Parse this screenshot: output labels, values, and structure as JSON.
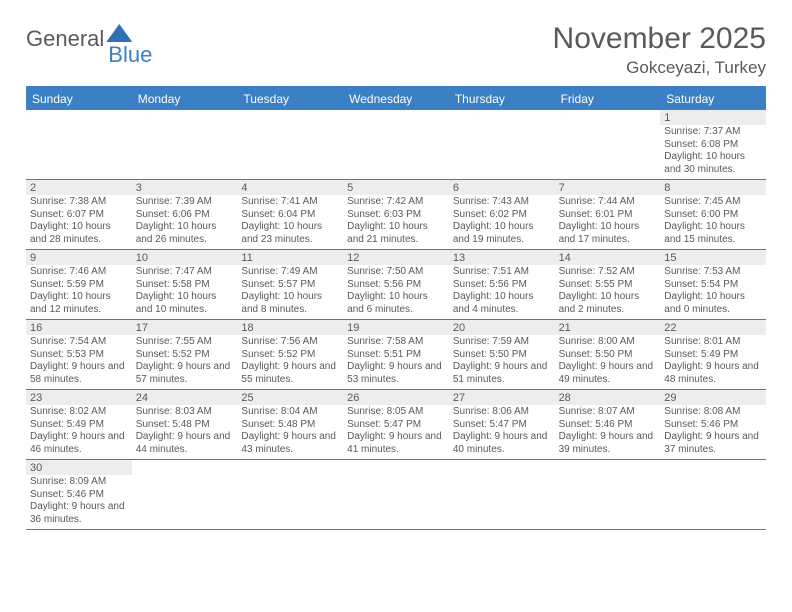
{
  "logo": {
    "part1": "General",
    "part2": "Blue"
  },
  "title": "November 2025",
  "location": "Gokceyazi, Turkey",
  "colors": {
    "header_bg": "#3b7fc4",
    "header_text": "#ffffff",
    "daynum_bg": "#ededed",
    "text": "#5a5a5a",
    "rule": "#3b7fc4"
  },
  "dow": [
    "Sunday",
    "Monday",
    "Tuesday",
    "Wednesday",
    "Thursday",
    "Friday",
    "Saturday"
  ],
  "weeks": [
    [
      null,
      null,
      null,
      null,
      null,
      null,
      {
        "n": "1",
        "sunrise": "7:37 AM",
        "sunset": "6:08 PM",
        "day": "10 hours and 30 minutes."
      }
    ],
    [
      {
        "n": "2",
        "sunrise": "7:38 AM",
        "sunset": "6:07 PM",
        "day": "10 hours and 28 minutes."
      },
      {
        "n": "3",
        "sunrise": "7:39 AM",
        "sunset": "6:06 PM",
        "day": "10 hours and 26 minutes."
      },
      {
        "n": "4",
        "sunrise": "7:41 AM",
        "sunset": "6:04 PM",
        "day": "10 hours and 23 minutes."
      },
      {
        "n": "5",
        "sunrise": "7:42 AM",
        "sunset": "6:03 PM",
        "day": "10 hours and 21 minutes."
      },
      {
        "n": "6",
        "sunrise": "7:43 AM",
        "sunset": "6:02 PM",
        "day": "10 hours and 19 minutes."
      },
      {
        "n": "7",
        "sunrise": "7:44 AM",
        "sunset": "6:01 PM",
        "day": "10 hours and 17 minutes."
      },
      {
        "n": "8",
        "sunrise": "7:45 AM",
        "sunset": "6:00 PM",
        "day": "10 hours and 15 minutes."
      }
    ],
    [
      {
        "n": "9",
        "sunrise": "7:46 AM",
        "sunset": "5:59 PM",
        "day": "10 hours and 12 minutes."
      },
      {
        "n": "10",
        "sunrise": "7:47 AM",
        "sunset": "5:58 PM",
        "day": "10 hours and 10 minutes."
      },
      {
        "n": "11",
        "sunrise": "7:49 AM",
        "sunset": "5:57 PM",
        "day": "10 hours and 8 minutes."
      },
      {
        "n": "12",
        "sunrise": "7:50 AM",
        "sunset": "5:56 PM",
        "day": "10 hours and 6 minutes."
      },
      {
        "n": "13",
        "sunrise": "7:51 AM",
        "sunset": "5:56 PM",
        "day": "10 hours and 4 minutes."
      },
      {
        "n": "14",
        "sunrise": "7:52 AM",
        "sunset": "5:55 PM",
        "day": "10 hours and 2 minutes."
      },
      {
        "n": "15",
        "sunrise": "7:53 AM",
        "sunset": "5:54 PM",
        "day": "10 hours and 0 minutes."
      }
    ],
    [
      {
        "n": "16",
        "sunrise": "7:54 AM",
        "sunset": "5:53 PM",
        "day": "9 hours and 58 minutes."
      },
      {
        "n": "17",
        "sunrise": "7:55 AM",
        "sunset": "5:52 PM",
        "day": "9 hours and 57 minutes."
      },
      {
        "n": "18",
        "sunrise": "7:56 AM",
        "sunset": "5:52 PM",
        "day": "9 hours and 55 minutes."
      },
      {
        "n": "19",
        "sunrise": "7:58 AM",
        "sunset": "5:51 PM",
        "day": "9 hours and 53 minutes."
      },
      {
        "n": "20",
        "sunrise": "7:59 AM",
        "sunset": "5:50 PM",
        "day": "9 hours and 51 minutes."
      },
      {
        "n": "21",
        "sunrise": "8:00 AM",
        "sunset": "5:50 PM",
        "day": "9 hours and 49 minutes."
      },
      {
        "n": "22",
        "sunrise": "8:01 AM",
        "sunset": "5:49 PM",
        "day": "9 hours and 48 minutes."
      }
    ],
    [
      {
        "n": "23",
        "sunrise": "8:02 AM",
        "sunset": "5:49 PM",
        "day": "9 hours and 46 minutes."
      },
      {
        "n": "24",
        "sunrise": "8:03 AM",
        "sunset": "5:48 PM",
        "day": "9 hours and 44 minutes."
      },
      {
        "n": "25",
        "sunrise": "8:04 AM",
        "sunset": "5:48 PM",
        "day": "9 hours and 43 minutes."
      },
      {
        "n": "26",
        "sunrise": "8:05 AM",
        "sunset": "5:47 PM",
        "day": "9 hours and 41 minutes."
      },
      {
        "n": "27",
        "sunrise": "8:06 AM",
        "sunset": "5:47 PM",
        "day": "9 hours and 40 minutes."
      },
      {
        "n": "28",
        "sunrise": "8:07 AM",
        "sunset": "5:46 PM",
        "day": "9 hours and 39 minutes."
      },
      {
        "n": "29",
        "sunrise": "8:08 AM",
        "sunset": "5:46 PM",
        "day": "9 hours and 37 minutes."
      }
    ],
    [
      {
        "n": "30",
        "sunrise": "8:09 AM",
        "sunset": "5:46 PM",
        "day": "9 hours and 36 minutes."
      },
      null,
      null,
      null,
      null,
      null,
      null
    ]
  ],
  "labels": {
    "sunrise": "Sunrise: ",
    "sunset": "Sunset: ",
    "daylight": "Daylight: "
  }
}
